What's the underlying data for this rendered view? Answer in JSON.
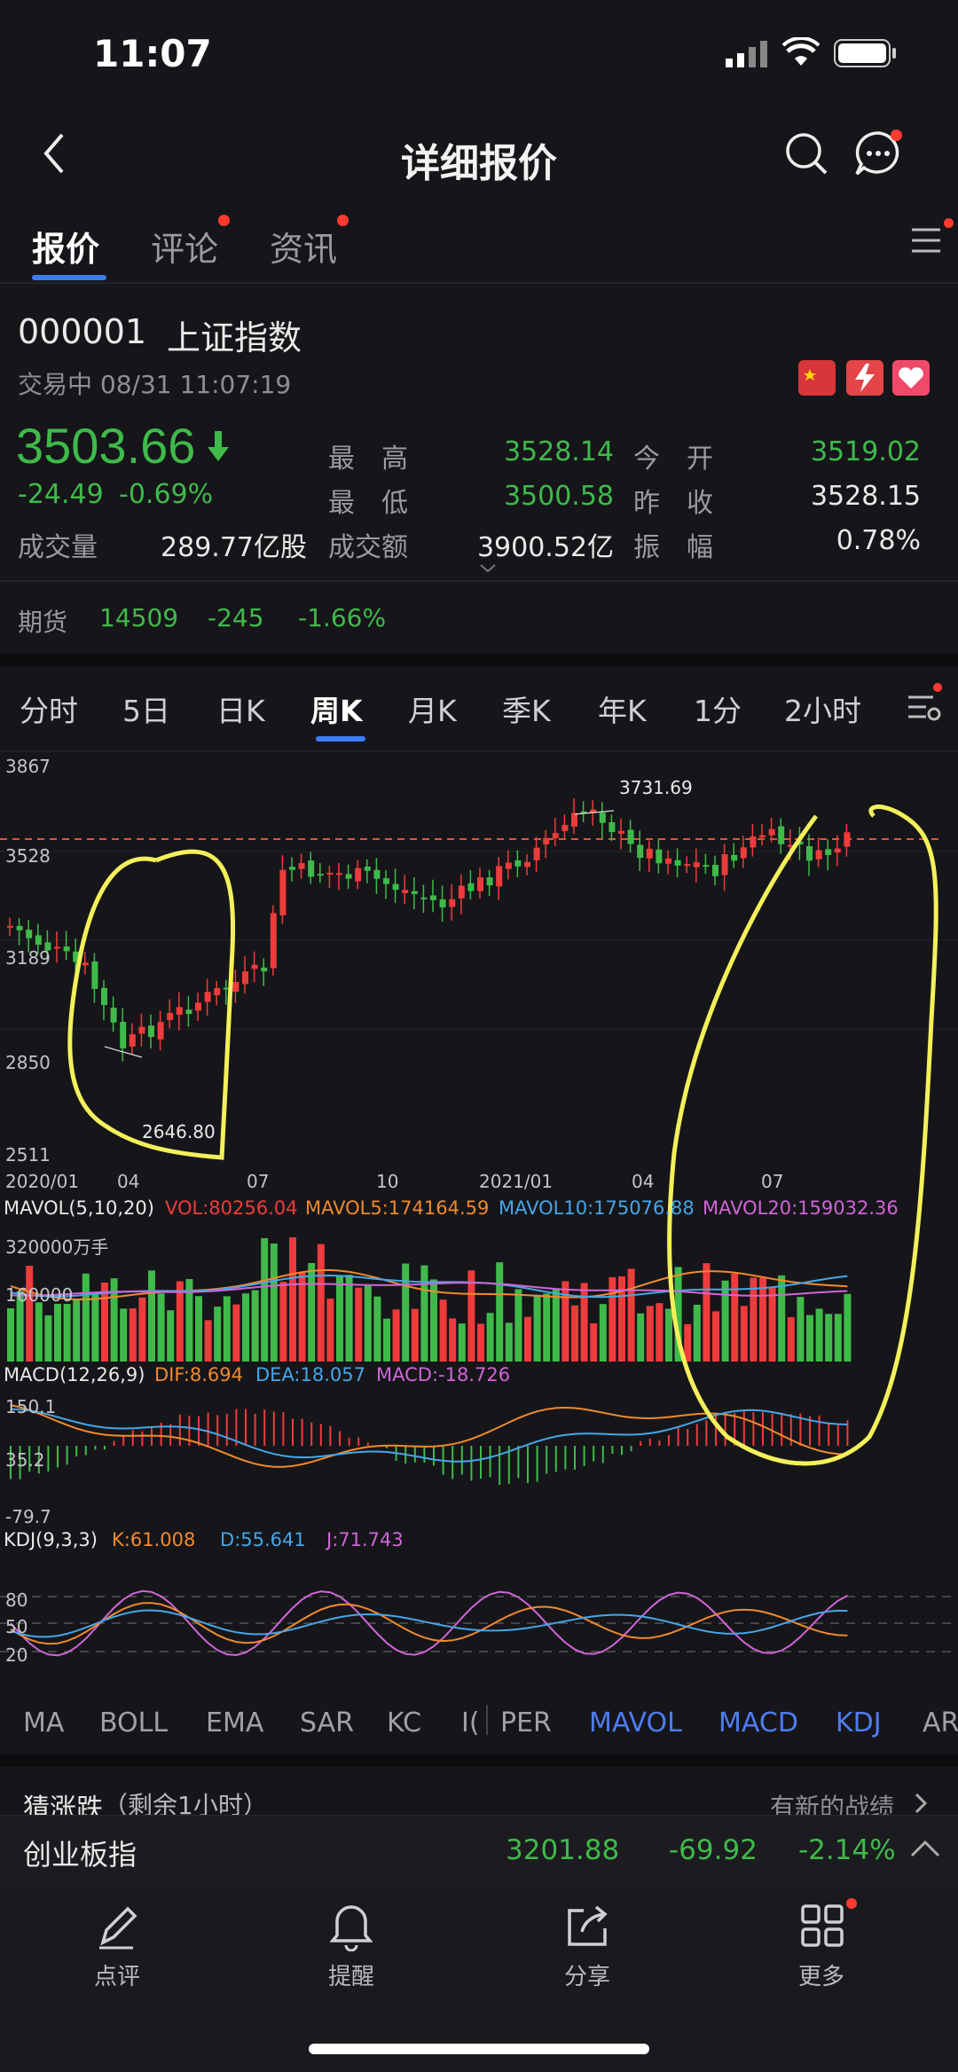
{
  "status_bar": {
    "time": "11:07"
  },
  "nav": {
    "title": "详细报价"
  },
  "tabs": [
    {
      "label": "报价"
    },
    {
      "label": "评论"
    },
    {
      "label": "资讯"
    }
  ],
  "stock": {
    "code": "000001",
    "name": "上证指数",
    "status": "交易中 08/31 11:07:19",
    "price": "3503.66",
    "change": "-24.49",
    "change_pct": "-0.69%",
    "high_label": "最　高",
    "high": "3528.14",
    "low_label": "最　低",
    "low": "3500.58",
    "open_label": "今　开",
    "open": "3519.02",
    "prev_close_label": "昨　收",
    "prev_close": "3528.15",
    "volume_label": "成交量",
    "volume": "289.77亿股",
    "turnover_label": "成交额",
    "turnover": "3900.52亿",
    "amplitude_label": "振　幅",
    "amplitude": "0.78%"
  },
  "futures": {
    "label": "期货",
    "value": "14509",
    "change": "-245",
    "change_pct": "-1.66%"
  },
  "periods": [
    "分时",
    "5日",
    "日K",
    "周K",
    "月K",
    "季K",
    "年K",
    "1分",
    "2小时"
  ],
  "chart": {
    "y_ticks": [
      "3867",
      "3528",
      "3189",
      "2850",
      "2511"
    ],
    "x_ticks": [
      "2020/01",
      "04",
      "07",
      "10",
      "2021/01",
      "04",
      "07"
    ],
    "high_label": "3731.69",
    "low_label": "2646.80",
    "mavol": {
      "title": "MAVOL(5,10,20)",
      "vol": "VOL:80256.04",
      "ma5": "MAVOL5:174164.59",
      "ma10": "MAVOL10:175076.88",
      "ma20": "MAVOL20:159032.36",
      "tick1": "320000万手",
      "tick2": "160000"
    },
    "macd": {
      "title": "MACD(12,26,9)",
      "dif": "DIF:8.694",
      "dea": "DEA:18.057",
      "macd": "MACD:-18.726",
      "ticks": [
        "150.1",
        "35.2",
        "-79.7"
      ]
    },
    "kdj": {
      "title": "KDJ(9,3,3)",
      "k": "K:61.008",
      "d": "D:55.641",
      "j": "J:71.743",
      "ticks": [
        "80",
        "50",
        "20"
      ]
    },
    "colors": {
      "up": "#ee3b3b",
      "down": "#3fba4a",
      "ma5": "#f08a2e",
      "ma10": "#46a6e8",
      "ma20": "#d065d8"
    }
  },
  "indicator_tabs": [
    {
      "label": "MA"
    },
    {
      "label": "BOLL"
    },
    {
      "label": "EMA"
    },
    {
      "label": "SAR"
    },
    {
      "label": "KC"
    },
    {
      "label": "I("
    },
    {
      "label": "PER"
    },
    {
      "label": "MAVOL"
    },
    {
      "label": "MACD"
    },
    {
      "label": "KDJ"
    },
    {
      "label": "AR"
    }
  ],
  "guess": {
    "label": "猜涨跌",
    "remaining": "（剩余1小时）",
    "link": "有新的战绩"
  },
  "ticker": {
    "name": "创业板指",
    "price": "3201.88",
    "change": "-69.92",
    "change_pct": "-2.14%"
  },
  "bottom_nav": [
    {
      "label": "点评",
      "icon": "pencil-icon"
    },
    {
      "label": "提醒",
      "icon": "bell-icon"
    },
    {
      "label": "分享",
      "icon": "share-icon"
    },
    {
      "label": "更多",
      "icon": "grid-icon"
    }
  ]
}
